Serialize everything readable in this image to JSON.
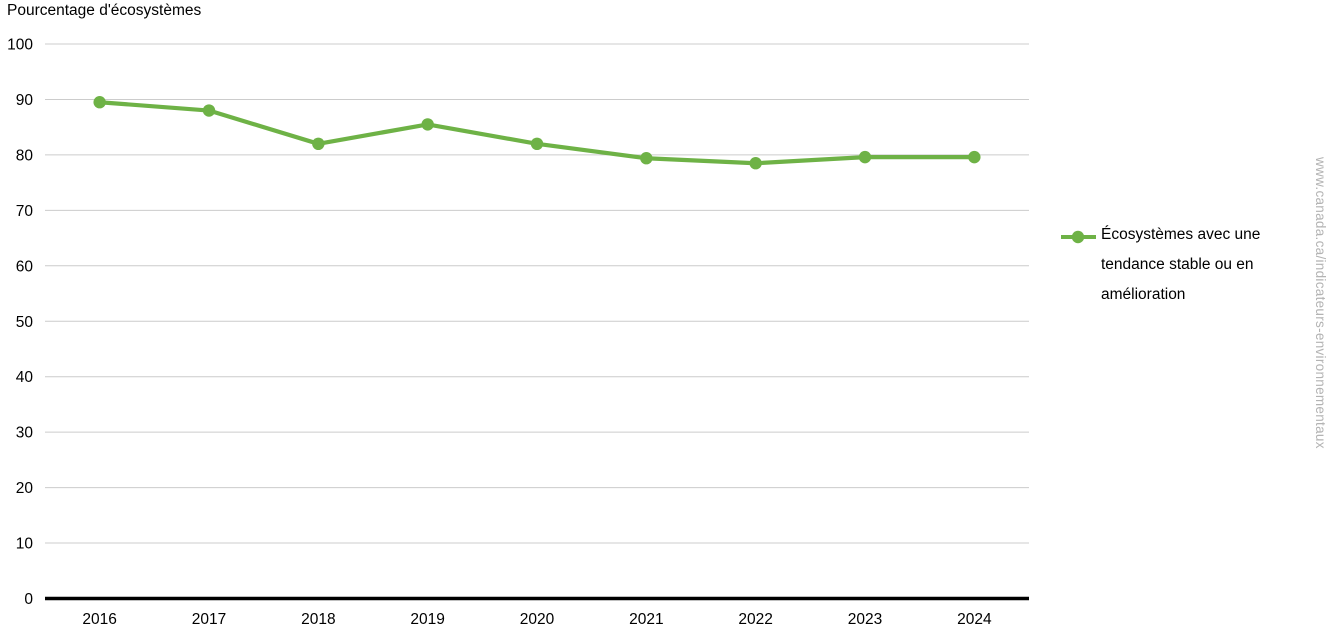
{
  "chart_data": {
    "type": "line",
    "title": "Pourcentage d'écosystèmes",
    "categories": [
      "2016",
      "2017",
      "2018",
      "2019",
      "2020",
      "2021",
      "2022",
      "2023",
      "2024"
    ],
    "series": [
      {
        "name": "Écosystèmes avec une tendance stable ou en amélioration",
        "values": [
          89.5,
          88,
          82,
          85.5,
          82,
          79.4,
          78.5,
          79.6,
          79.6
        ],
        "color": "#6eb246",
        "marker": "circle"
      }
    ],
    "xlabel": "",
    "ylabel": "Pourcentage d'écosystèmes",
    "ylim": [
      0,
      100
    ],
    "y_ticks": [
      0,
      10,
      20,
      30,
      40,
      50,
      60,
      70,
      80,
      90,
      100
    ],
    "grid": "horizontal",
    "legend_position": "right"
  },
  "legend": {
    "label": "Écosystèmes avec une tendance stable ou en amélioration"
  },
  "watermark": "www.canada.ca/indicateurs-environnementaux",
  "colors": {
    "series_green": "#6eb246",
    "gridline": "#cccccc",
    "axis": "#000000",
    "text": "#000000",
    "watermark": "#b3b3b3",
    "background": "#ffffff"
  }
}
